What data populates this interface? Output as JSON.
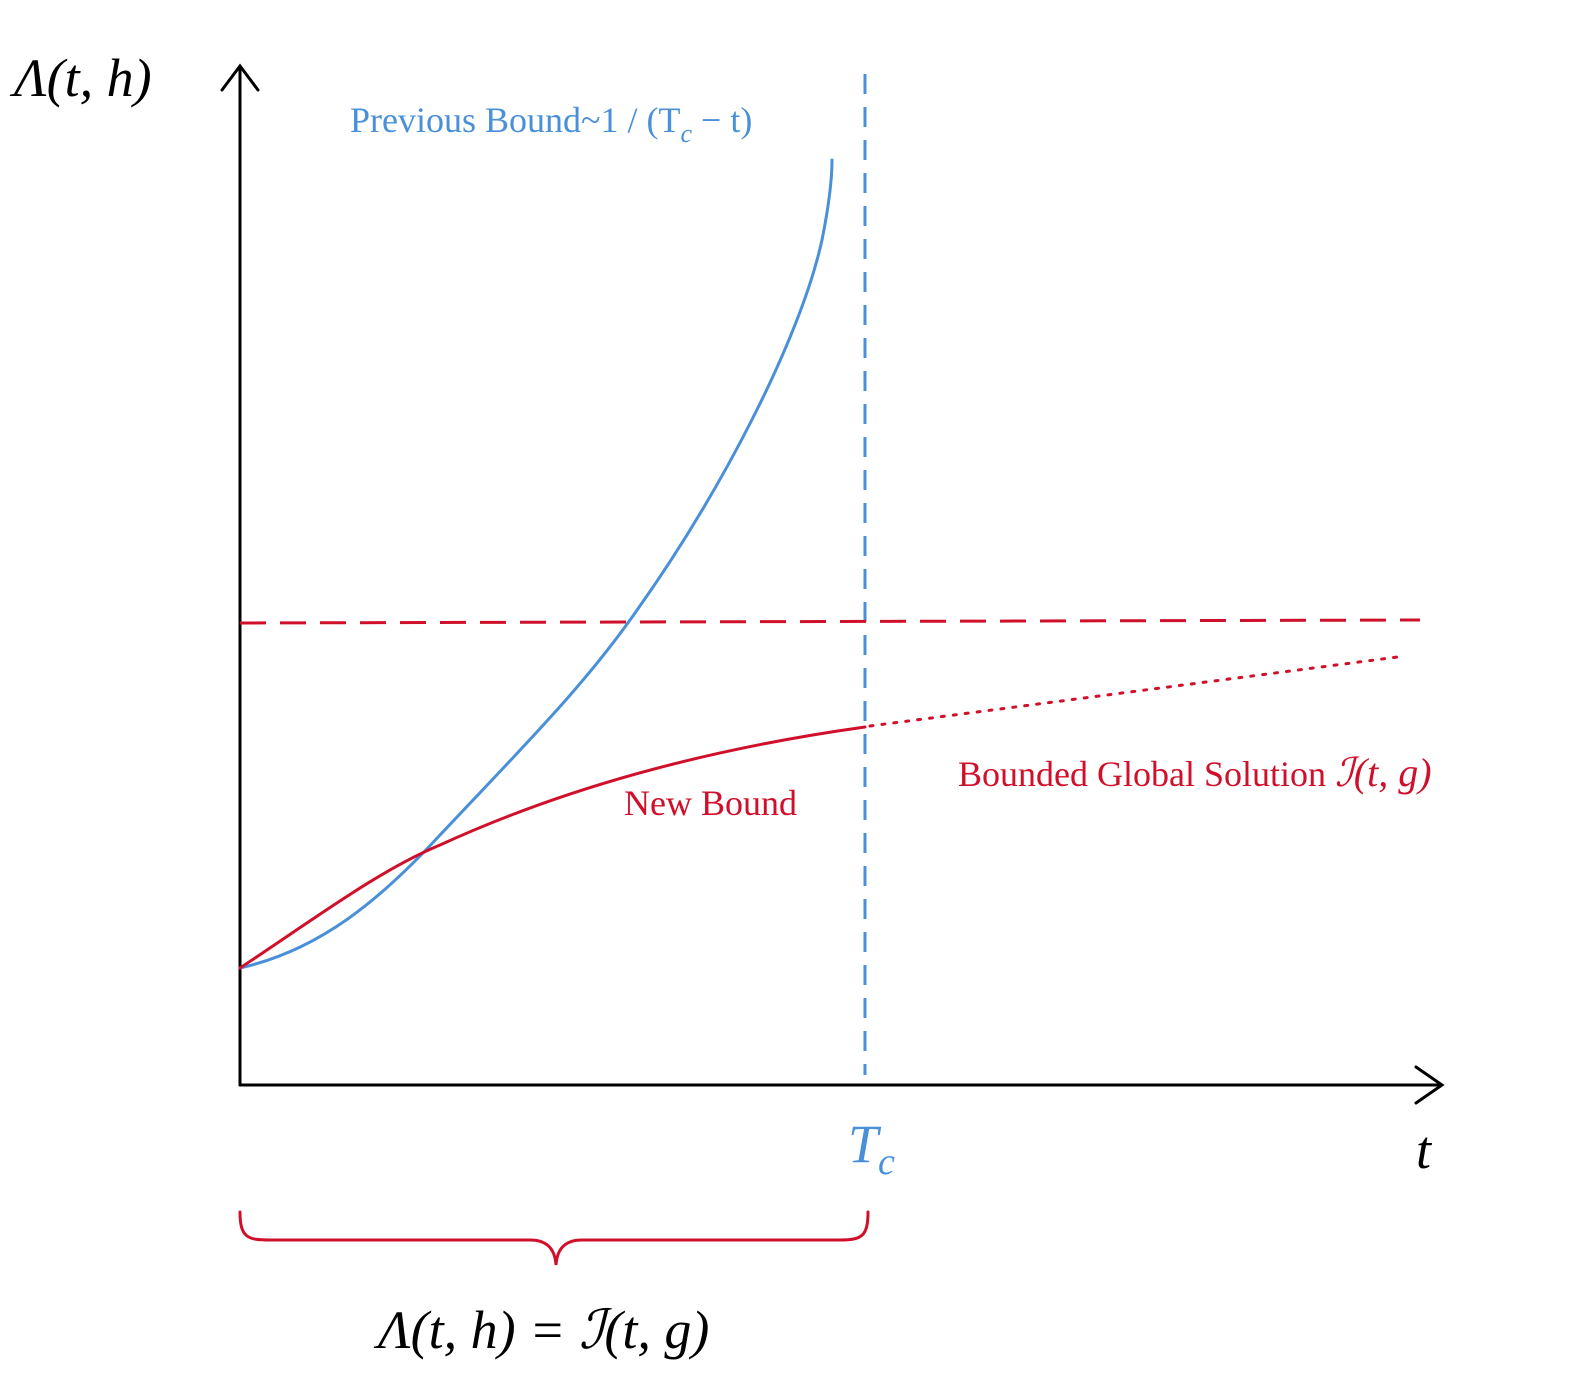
{
  "axes": {
    "y_label": {
      "main": "Λ(t, h)"
    },
    "x_label": "t",
    "tc_label": {
      "main": "T",
      "sub": "c"
    }
  },
  "curves": {
    "previous_bound": {
      "text": "Previous Bound~1 / (T",
      "sub": "c",
      "tail": " − t)"
    },
    "new_bound": "New Bound",
    "global_solution": {
      "text": "Bounded Global Solution ",
      "math": "ℐ(t, g)"
    }
  },
  "brace_label": "Λ(t, h) = ℐ(t, g)"
}
